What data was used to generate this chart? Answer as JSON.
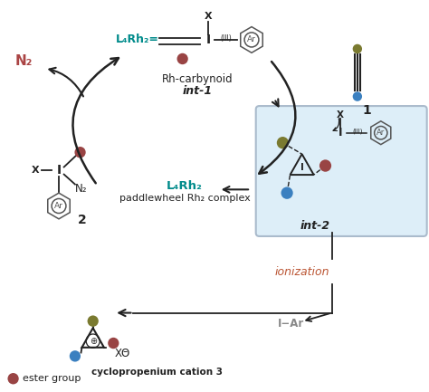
{
  "bg": "#ffffff",
  "teal": "#008B8B",
  "brown": "#994444",
  "olive": "#7A7A30",
  "blue": "#3B80C0",
  "dark": "#222222",
  "gray": "#888888",
  "ioniz_color": "#BB5533",
  "N2_color": "#AA4444",
  "int2_bg": "#ddeef8",
  "int2_edge": "#aabbcc",
  "labels": {
    "X": "X",
    "III": "(III)",
    "Ar": "Ar",
    "I": "I",
    "L4Rh2eq": "L₄Rh₂=",
    "L4Rh2": "L₄Rh₂",
    "rh_carbynoid": "Rh-carbynoid",
    "int1": "int-1",
    "paddlewheel": "paddlewheel Rh₂ complex",
    "int2": "int-2",
    "ionization": "ionization",
    "IAr": "I−Ar",
    "N2": "N₂",
    "cmpd1": "1",
    "cmpd2": "2",
    "cyclopropenium": "cyclopropenium cation 3",
    "ester_group": "ester group",
    "Xminus": "XΘ"
  },
  "figsize": [
    4.74,
    4.33
  ],
  "dpi": 100,
  "xlim": [
    0,
    10
  ],
  "ylim": [
    0,
    9
  ]
}
